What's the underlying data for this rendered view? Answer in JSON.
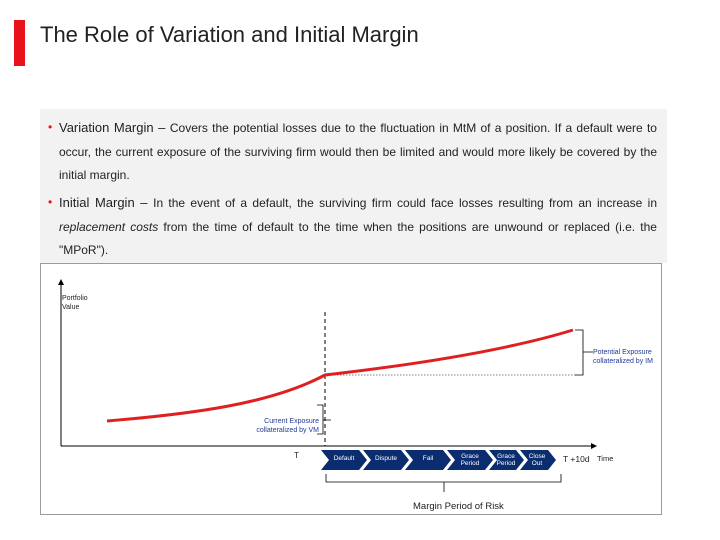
{
  "title": "The Role of Variation and Initial Margin",
  "bullets": [
    {
      "lead": "Variation Margin",
      "sep": " – ",
      "text": "Covers the potential losses due to the fluctuation in MtM of a position. If a default were to occur, the current exposure of the surviving firm would then be limited and would more likely be covered by the initial margin."
    },
    {
      "lead": "Initial Margin",
      "sep": " – ",
      "text_before": "In the event of a default, the surviving firm could face losses resulting from an increase in ",
      "italic": "replacement costs",
      "text_after": " from the time of default to the time when the positions are unwound or replaced (i.e. the \"MPoR\")."
    }
  ],
  "diagram": {
    "y_axis_label_line1": "Portfolio",
    "y_axis_label_line2": "Value",
    "pe_label_line1": "Potential Exposure",
    "pe_label_line2": "collateralized by IM",
    "ce_label_line1": "Current Exposure",
    "ce_label_line2": "collateralized by VM",
    "t_label": "T",
    "t10_label": "T +10d",
    "time_label": "Time",
    "mpor_label": "Margin Period of Risk",
    "steps": [
      {
        "line1": "Default",
        "line2": ""
      },
      {
        "line1": "Dispute",
        "line2": ""
      },
      {
        "line1": "Fail",
        "line2": ""
      },
      {
        "line1": "Grace",
        "line2": "Period"
      },
      {
        "line1": "Grace",
        "line2": "Period"
      },
      {
        "line1": "Close",
        "line2": "Out"
      }
    ]
  },
  "colors": {
    "accent": "#e8121b",
    "curve": "#e02020",
    "label_blue": "#1f3a9a",
    "chevron": "#0b2c6e"
  }
}
